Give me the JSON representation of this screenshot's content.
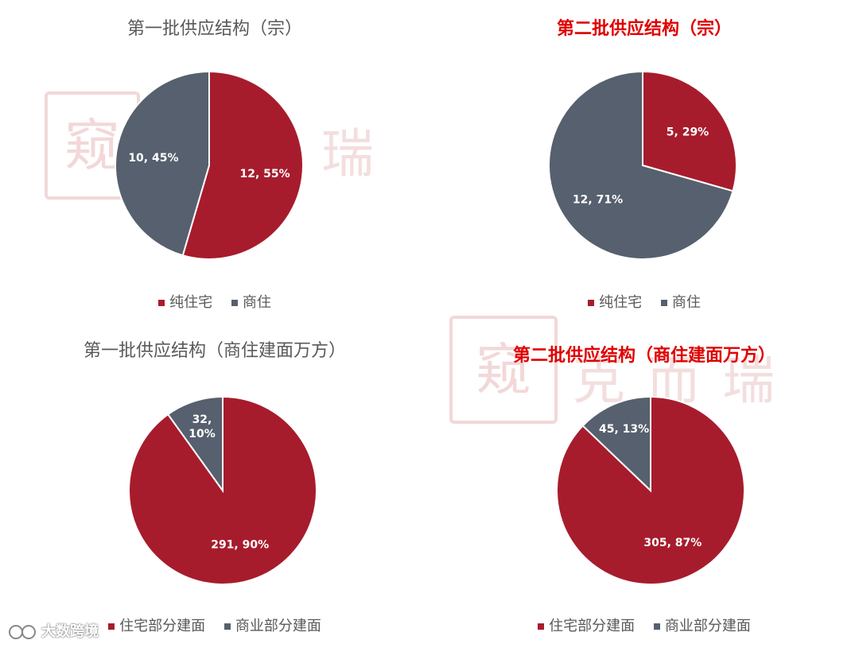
{
  "colors": {
    "residential": "#a71c2c",
    "commercial": "#56606e"
  },
  "watermark": {
    "seal_glyph": "窥",
    "text": "克而瑞"
  },
  "footer": {
    "text": "大数跨境"
  },
  "chart_data": [
    {
      "type": "pie",
      "title": "第一批供应结构（宗）",
      "title_style": "normal",
      "legend": [
        "纯住宅",
        "商住"
      ],
      "slices": [
        {
          "name": "纯住宅",
          "value": 12,
          "percent": 55,
          "label": "12, 55%",
          "color": "#a71c2c"
        },
        {
          "name": "商住",
          "value": 10,
          "percent": 45,
          "label": "10, 45%",
          "color": "#56606e"
        }
      ]
    },
    {
      "type": "pie",
      "title": "第二批供应结构（宗）",
      "title_style": "highlight",
      "legend": [
        "纯住宅",
        "商住"
      ],
      "slices": [
        {
          "name": "纯住宅",
          "value": 5,
          "percent": 29,
          "label": "5, 29%",
          "color": "#a71c2c"
        },
        {
          "name": "商住",
          "value": 12,
          "percent": 71,
          "label": "12, 71%",
          "color": "#56606e"
        }
      ]
    },
    {
      "type": "pie",
      "title": "第一批供应结构（商住建面万方）",
      "title_style": "normal",
      "legend": [
        "住宅部分建面",
        "商业部分建面"
      ],
      "slices": [
        {
          "name": "住宅部分建面",
          "value": 291,
          "percent": 90,
          "label": "291, 90%",
          "color": "#a71c2c"
        },
        {
          "name": "商业部分建面",
          "value": 32,
          "percent": 10,
          "label": "32,\n10%",
          "color": "#56606e"
        }
      ]
    },
    {
      "type": "pie",
      "title": "第二批供应结构（商住建面万方）",
      "title_style": "highlight",
      "legend": [
        "住宅部分建面",
        "商业部分建面"
      ],
      "slices": [
        {
          "name": "住宅部分建面",
          "value": 305,
          "percent": 87,
          "label": "305, 87%",
          "color": "#a71c2c"
        },
        {
          "name": "商业部分建面",
          "value": 45,
          "percent": 13,
          "label": "45, 13%",
          "color": "#56606e"
        }
      ]
    }
  ]
}
